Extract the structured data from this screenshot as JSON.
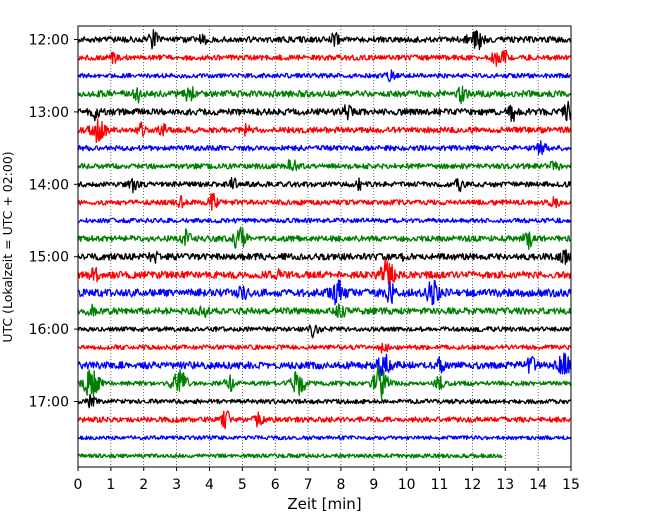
{
  "chart_data": {
    "type": "line",
    "title": "",
    "xlabel": "Zeit  [min]",
    "ylabel": "UTC (Lokalzeit = UTC + 02:00)",
    "xlim": [
      0,
      15
    ],
    "x_ticks": [
      0,
      1,
      2,
      3,
      4,
      5,
      6,
      7,
      8,
      9,
      10,
      11,
      12,
      13,
      14,
      15
    ],
    "y_ticks": [
      "12:00",
      "13:00",
      "14:00",
      "15:00",
      "16:00",
      "17:00"
    ],
    "grid": "vertical dotted lines at each minute",
    "legend": "none",
    "trace_colors": [
      "#000000",
      "#ff0000",
      "#0000ff",
      "#008000"
    ],
    "row_interval_minutes": 15,
    "series": [
      {
        "start": "12:00",
        "color": "#000000",
        "end_min": 15,
        "amplitude": 0.45,
        "events": [
          {
            "t": 2.3,
            "a": 1.3
          },
          {
            "t": 3.8,
            "a": 0.8
          },
          {
            "t": 7.8,
            "a": 0.8
          },
          {
            "t": 12.1,
            "a": 1.5
          }
        ]
      },
      {
        "start": "12:15",
        "color": "#ff0000",
        "end_min": 15,
        "amplitude": 0.4,
        "events": [
          {
            "t": 1.1,
            "a": 0.7
          },
          {
            "t": 12.7,
            "a": 1.0
          },
          {
            "t": 13.0,
            "a": 0.8
          }
        ]
      },
      {
        "start": "12:30",
        "color": "#0000ff",
        "end_min": 15,
        "amplitude": 0.35,
        "events": [
          {
            "t": 9.5,
            "a": 0.6
          }
        ]
      },
      {
        "start": "12:45",
        "color": "#008000",
        "end_min": 15,
        "amplitude": 0.5,
        "events": [
          {
            "t": 1.8,
            "a": 1.1
          },
          {
            "t": 3.4,
            "a": 1.3
          },
          {
            "t": 11.7,
            "a": 1.2
          }
        ]
      },
      {
        "start": "13:00",
        "color": "#000000",
        "end_min": 15,
        "amplitude": 0.5,
        "events": [
          {
            "t": 0.5,
            "a": 1.0
          },
          {
            "t": 8.2,
            "a": 0.9
          },
          {
            "t": 13.2,
            "a": 1.3
          },
          {
            "t": 14.9,
            "a": 1.2
          }
        ]
      },
      {
        "start": "13:15",
        "color": "#ff0000",
        "end_min": 15,
        "amplitude": 0.45,
        "events": [
          {
            "t": 0.6,
            "a": 1.6
          },
          {
            "t": 1.9,
            "a": 0.9
          },
          {
            "t": 2.6,
            "a": 0.8
          },
          {
            "t": 5.1,
            "a": 1.3
          }
        ]
      },
      {
        "start": "13:30",
        "color": "#0000ff",
        "end_min": 15,
        "amplitude": 0.4,
        "events": [
          {
            "t": 14.1,
            "a": 1.2
          }
        ]
      },
      {
        "start": "13:45",
        "color": "#008000",
        "end_min": 15,
        "amplitude": 0.4,
        "events": [
          {
            "t": 6.5,
            "a": 1.2
          },
          {
            "t": 14.5,
            "a": 0.8
          }
        ]
      },
      {
        "start": "14:00",
        "color": "#000000",
        "end_min": 15,
        "amplitude": 0.4,
        "events": [
          {
            "t": 1.7,
            "a": 1.0
          },
          {
            "t": 4.7,
            "a": 1.0
          },
          {
            "t": 8.6,
            "a": 0.8
          },
          {
            "t": 11.6,
            "a": 0.8
          }
        ]
      },
      {
        "start": "14:15",
        "color": "#ff0000",
        "end_min": 15,
        "amplitude": 0.4,
        "events": [
          {
            "t": 3.1,
            "a": 0.8
          },
          {
            "t": 4.1,
            "a": 1.2
          },
          {
            "t": 14.5,
            "a": 0.8
          }
        ]
      },
      {
        "start": "14:30",
        "color": "#0000ff",
        "end_min": 15,
        "amplitude": 0.35,
        "events": []
      },
      {
        "start": "14:45",
        "color": "#008000",
        "end_min": 15,
        "amplitude": 0.45,
        "events": [
          {
            "t": 3.3,
            "a": 1.1
          },
          {
            "t": 4.9,
            "a": 1.5
          },
          {
            "t": 13.7,
            "a": 1.3
          }
        ]
      },
      {
        "start": "15:00",
        "color": "#000000",
        "end_min": 15,
        "amplitude": 0.5,
        "events": [
          {
            "t": 2.3,
            "a": 1.1
          },
          {
            "t": 10.0,
            "a": 0.9
          },
          {
            "t": 14.8,
            "a": 1.0
          }
        ]
      },
      {
        "start": "15:15",
        "color": "#ff0000",
        "end_min": 15,
        "amplitude": 0.55,
        "events": [
          {
            "t": 0.5,
            "a": 0.9
          },
          {
            "t": 6.0,
            "a": 0.9
          },
          {
            "t": 9.4,
            "a": 2.0
          }
        ]
      },
      {
        "start": "15:30",
        "color": "#0000ff",
        "end_min": 15,
        "amplitude": 0.6,
        "events": [
          {
            "t": 5.0,
            "a": 1.0
          },
          {
            "t": 7.9,
            "a": 1.6
          },
          {
            "t": 9.5,
            "a": 1.3
          },
          {
            "t": 10.8,
            "a": 1.6
          }
        ]
      },
      {
        "start": "15:45",
        "color": "#008000",
        "end_min": 15,
        "amplitude": 0.5,
        "events": [
          {
            "t": 0.4,
            "a": 1.0
          },
          {
            "t": 3.8,
            "a": 0.9
          },
          {
            "t": 8.0,
            "a": 1.0
          }
        ]
      },
      {
        "start": "16:00",
        "color": "#000000",
        "end_min": 15,
        "amplitude": 0.35,
        "events": [
          {
            "t": 7.2,
            "a": 1.4
          }
        ]
      },
      {
        "start": "16:15",
        "color": "#ff0000",
        "end_min": 15,
        "amplitude": 0.35,
        "events": [
          {
            "t": 9.3,
            "a": 0.8
          }
        ]
      },
      {
        "start": "16:30",
        "color": "#0000ff",
        "end_min": 15,
        "amplitude": 0.55,
        "events": [
          {
            "t": 9.3,
            "a": 1.5
          },
          {
            "t": 11.0,
            "a": 1.0
          },
          {
            "t": 13.8,
            "a": 1.3
          },
          {
            "t": 14.8,
            "a": 1.6
          }
        ]
      },
      {
        "start": "16:45",
        "color": "#008000",
        "end_min": 15,
        "amplitude": 0.35,
        "events": [
          {
            "t": 0.4,
            "a": 2.6
          },
          {
            "t": 3.1,
            "a": 1.8
          },
          {
            "t": 4.6,
            "a": 1.3
          },
          {
            "t": 6.7,
            "a": 1.9
          },
          {
            "t": 9.2,
            "a": 3.0
          },
          {
            "t": 11.0,
            "a": 1.2
          }
        ]
      },
      {
        "start": "17:00",
        "color": "#000000",
        "end_min": 15,
        "amplitude": 0.35,
        "events": [
          {
            "t": 0.4,
            "a": 0.8
          }
        ]
      },
      {
        "start": "17:15",
        "color": "#ff0000",
        "end_min": 15,
        "amplitude": 0.4,
        "events": [
          {
            "t": 4.5,
            "a": 1.4
          },
          {
            "t": 5.5,
            "a": 0.9
          }
        ]
      },
      {
        "start": "17:30",
        "color": "#0000ff",
        "end_min": 15,
        "amplitude": 0.3,
        "events": []
      },
      {
        "start": "17:45",
        "color": "#008000",
        "end_min": 12.9,
        "amplitude": 0.3,
        "events": []
      }
    ]
  }
}
